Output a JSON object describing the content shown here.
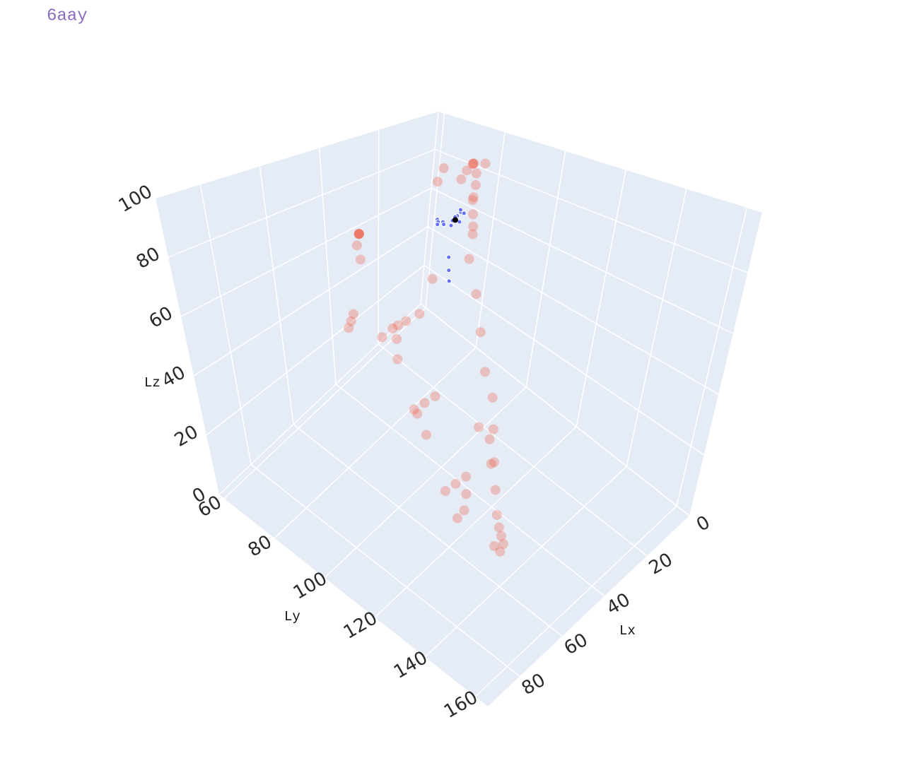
{
  "chart_data": {
    "type": "scatter3d",
    "title": "6aay",
    "xaxis_title": "Lx",
    "yaxis_title": "Ly",
    "zaxis_title": "Lz",
    "xlim": [
      0,
      95
    ],
    "ylim": [
      58,
      165
    ],
    "zlim": [
      0,
      100
    ],
    "xticks": [
      0,
      20,
      40,
      60,
      80
    ],
    "yticks": [
      60,
      80,
      100,
      120,
      140,
      160
    ],
    "zticks": [
      0,
      20,
      40,
      60,
      80,
      100
    ],
    "grid": true,
    "series": [
      {
        "color": "#ef553b",
        "opacity": 0.3,
        "size": 7,
        "x": [
          10,
          12,
          8,
          14,
          9,
          11,
          15,
          13,
          20,
          22,
          18,
          25,
          40,
          42,
          38,
          45,
          44,
          41,
          55,
          58,
          52,
          60,
          57,
          70,
          72,
          68,
          75,
          74,
          80,
          82,
          78,
          85,
          75,
          70,
          65,
          60,
          55,
          50,
          45,
          40,
          35,
          30,
          28,
          25,
          22,
          20,
          60,
          62,
          58,
          30,
          33,
          48,
          50,
          15,
          18,
          65,
          35,
          45,
          70,
          25
        ],
        "y": [
          80,
          82,
          78,
          85,
          83,
          79,
          81,
          84,
          90,
          92,
          88,
          95,
          70,
          72,
          68,
          75,
          73,
          71,
          100,
          98,
          102,
          96,
          99,
          120,
          118,
          122,
          125,
          121,
          140,
          138,
          142,
          145,
          150,
          148,
          145,
          140,
          135,
          130,
          125,
          120,
          115,
          110,
          105,
          100,
          95,
          90,
          85,
          88,
          82,
          110,
          108,
          90,
          92,
          75,
          76,
          130,
          115,
          100,
          135,
          95
        ],
        "z": [
          90,
          92,
          88,
          85,
          91,
          87,
          86,
          89,
          85,
          80,
          82,
          78,
          70,
          72,
          68,
          65,
          69,
          71,
          60,
          58,
          62,
          55,
          59,
          50,
          48,
          52,
          45,
          49,
          40,
          38,
          42,
          35,
          25,
          20,
          18,
          15,
          12,
          10,
          12,
          15,
          20,
          25,
          30,
          40,
          50,
          60,
          55,
          60,
          50,
          10,
          15,
          45,
          40,
          88,
          84,
          20,
          8,
          70,
          30,
          75
        ]
      },
      {
        "color": "#636efa",
        "opacity": 1,
        "size": 3,
        "x": [
          20,
          22,
          24,
          21,
          23,
          25,
          19,
          26,
          22,
          24,
          27,
          21,
          23,
          25,
          20,
          28,
          30,
          32
        ],
        "y": [
          85,
          86,
          84,
          87,
          83,
          88,
          85,
          86,
          89,
          82,
          85,
          84,
          87,
          83,
          86,
          90,
          92,
          94
        ],
        "z": [
          75,
          76,
          74,
          78,
          73,
          77,
          72,
          75,
          79,
          74,
          76,
          71,
          77,
          73,
          78,
          65,
          62,
          60
        ]
      },
      {
        "color": "#000000",
        "opacity": 1,
        "size": 4,
        "x": [
          15
        ],
        "y": [
          80
        ],
        "z": [
          68
        ]
      }
    ]
  }
}
